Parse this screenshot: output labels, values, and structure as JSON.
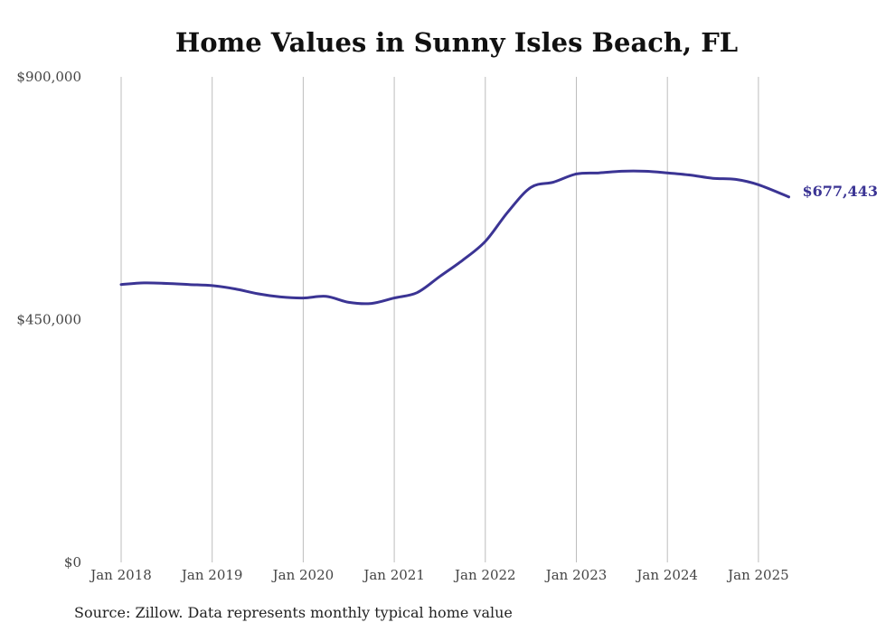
{
  "chart_data": {
    "type": "line",
    "title": "Home Values in Sunny Isles Beach, FL",
    "source": "Source: Zillow. Data represents monthly typical home value",
    "xlabel": "",
    "ylabel": "",
    "ylim": [
      0,
      900000
    ],
    "y_ticks": [
      "$0",
      "$450,000",
      "$900,000"
    ],
    "y_tick_values": [
      0,
      450000,
      900000
    ],
    "x_ticks": [
      "Jan 2018",
      "Jan 2019",
      "Jan 2020",
      "Jan 2021",
      "Jan 2022",
      "Jan 2023",
      "Jan 2024",
      "Jan 2025"
    ],
    "xlim": [
      "2018-01",
      "2025-05"
    ],
    "grid": "vertical",
    "line_color": "#3b3494",
    "end_label": "$677,443",
    "series": [
      {
        "x": [
          "2018-01",
          "2018-04",
          "2018-07",
          "2018-10",
          "2019-01",
          "2019-04",
          "2019-07",
          "2019-10",
          "2020-01",
          "2020-04",
          "2020-07",
          "2020-10",
          "2021-01",
          "2021-04",
          "2021-07",
          "2021-10",
          "2022-01",
          "2022-04",
          "2022-07",
          "2022-10",
          "2023-01",
          "2023-04",
          "2023-07",
          "2023-10",
          "2024-01",
          "2024-04",
          "2024-07",
          "2024-10",
          "2025-01",
          "2025-05"
        ],
        "values": [
          515000,
          518000,
          517000,
          515000,
          513000,
          507000,
          498000,
          492000,
          490000,
          493000,
          482000,
          480000,
          490000,
          500000,
          530000,
          560000,
          595000,
          650000,
          695000,
          705000,
          720000,
          722000,
          725000,
          725000,
          722000,
          718000,
          712000,
          710000,
          700000,
          677443
        ]
      }
    ]
  }
}
